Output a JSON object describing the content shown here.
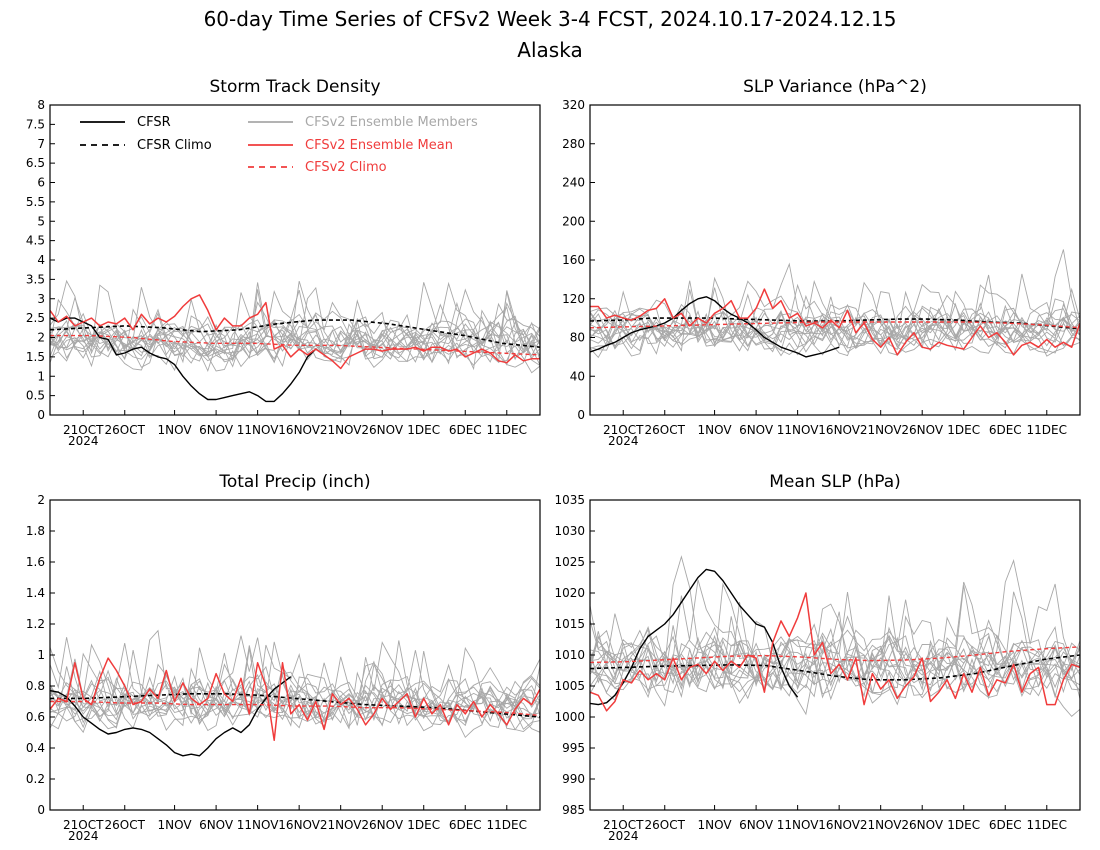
{
  "figure": {
    "title": "60-day Time Series of CFSv2 Week 3-4 FCST, 2024.10.17-2024.12.15",
    "subtitle": "Alaska"
  },
  "colors": {
    "cfsr": "#000000",
    "ensemble_member": "#a8a8a8",
    "ensemble_mean": "#f03c3c",
    "frame": "#000000"
  },
  "legend": {
    "items": [
      {
        "label": "CFSR",
        "color": "#000000",
        "dash": false
      },
      {
        "label": "CFSR Climo",
        "color": "#000000",
        "dash": true
      },
      {
        "label": "CFSv2 Ensemble Members",
        "color": "#a8a8a8",
        "dash": false
      },
      {
        "label": "CFSv2 Ensemble Mean",
        "color": "#f03c3c",
        "dash": false
      },
      {
        "label": "CFSv2 Climo",
        "color": "#f03c3c",
        "dash": true
      }
    ]
  },
  "chart_data": [
    {
      "type": "line",
      "title": "Storm Track Density",
      "x_range": [
        "2024-10-17",
        "2024-12-15"
      ],
      "x_ticks": [
        "21OCT",
        "26OCT",
        "1NOV",
        "6NOV",
        "11NOV",
        "16NOV",
        "21NOV",
        "26NOV",
        "1DEC",
        "6DEC",
        "11DEC"
      ],
      "x_year_label": "2024",
      "ylim": [
        0,
        8
      ],
      "y_ticks": [
        "0",
        "0.5",
        "1",
        "1.5",
        "2",
        "2.5",
        "3",
        "3.5",
        "4",
        "4.5",
        "5",
        "5.5",
        "6",
        "6.5",
        "7",
        "7.5",
        "8"
      ],
      "members_band": {
        "center": 1.9,
        "spread": 0.75,
        "max": 5.5
      },
      "series": [
        {
          "name": "CFSR",
          "role": "cfsr",
          "x_start": "2024-10-17",
          "values": [
            2.5,
            2.4,
            2.5,
            2.5,
            2.4,
            2.3,
            2.0,
            1.95,
            1.55,
            1.6,
            1.7,
            1.75,
            1.6,
            1.5,
            1.45,
            1.3,
            1.0,
            0.75,
            0.55,
            0.4,
            0.4,
            0.45,
            0.5,
            0.55,
            0.6,
            0.5,
            0.35,
            0.35,
            0.55,
            0.8,
            1.1,
            1.5,
            1.7
          ]
        },
        {
          "name": "CFSR Climo",
          "role": "cfsr_climo",
          "x_start": "2024-10-17",
          "values": [
            2.2,
            2.25,
            2.3,
            2.25,
            2.15,
            2.2,
            2.35,
            2.45,
            2.45,
            2.35,
            2.2,
            2.05,
            1.85,
            1.75
          ]
        },
        {
          "name": "CFSv2 Ensemble Mean",
          "role": "ens_mean",
          "x_start": "2024-10-17",
          "values": [
            2.7,
            2.4,
            2.55,
            2.3,
            2.4,
            2.5,
            2.3,
            2.4,
            2.35,
            2.5,
            2.2,
            2.6,
            2.35,
            2.5,
            2.4,
            2.55,
            2.8,
            3.0,
            3.1,
            2.7,
            2.2,
            2.5,
            2.3,
            2.3,
            2.5,
            2.6,
            2.9,
            1.7,
            1.8,
            1.5,
            1.7,
            1.55,
            1.7,
            1.55,
            1.4,
            1.2,
            1.5,
            1.6,
            1.7,
            1.7,
            1.65,
            1.7,
            1.7,
            1.7,
            1.75,
            1.65,
            1.75,
            1.75,
            1.65,
            1.7,
            1.5,
            1.6,
            1.7,
            1.6,
            1.4,
            1.35,
            1.55,
            1.4,
            1.45,
            1.45
          ]
        },
        {
          "name": "CFSv2 Climo",
          "role": "ens_climo",
          "x_start": "2024-10-17",
          "values": [
            2.05,
            2.05,
            2.0,
            1.9,
            1.85,
            1.85,
            1.8,
            1.8,
            1.75,
            1.7,
            1.65,
            1.6,
            1.55
          ]
        }
      ]
    },
    {
      "type": "line",
      "title": "SLP Variance (hPa^2)",
      "x_range": [
        "2024-10-17",
        "2024-12-15"
      ],
      "x_ticks": [
        "21OCT",
        "26OCT",
        "1NOV",
        "6NOV",
        "11NOV",
        "16NOV",
        "21NOV",
        "26NOV",
        "1DEC",
        "6DEC",
        "11DEC"
      ],
      "x_year_label": "2024",
      "ylim": [
        0,
        320
      ],
      "y_ticks": [
        "0",
        "40",
        "80",
        "120",
        "160",
        "200",
        "240",
        "280",
        "320"
      ],
      "members_band": {
        "center": 88,
        "spread": 28,
        "max": 320
      },
      "series": [
        {
          "name": "CFSR",
          "role": "cfsr",
          "x_start": "2024-10-17",
          "values": [
            65,
            68,
            72,
            75,
            80,
            85,
            88,
            90,
            92,
            95,
            100,
            108,
            115,
            120,
            122,
            118,
            110,
            104,
            100,
            95,
            88,
            80,
            75,
            70,
            67,
            64,
            60,
            62,
            64,
            67,
            70
          ]
        },
        {
          "name": "CFSR Climo",
          "role": "cfsr_climo",
          "x_start": "2024-10-17",
          "values": [
            97,
            98,
            100,
            100,
            100,
            99,
            98,
            97,
            97,
            98,
            99,
            99,
            98,
            96,
            95,
            92,
            89
          ]
        },
        {
          "name": "CFSv2 Ensemble Mean",
          "role": "ens_mean",
          "x_start": "2024-10-17",
          "values": [
            112,
            112,
            100,
            103,
            100,
            98,
            102,
            108,
            110,
            120,
            100,
            105,
            92,
            100,
            95,
            105,
            110,
            118,
            100,
            100,
            110,
            130,
            110,
            118,
            100,
            105,
            92,
            95,
            90,
            98,
            90,
            108,
            85,
            95,
            78,
            70,
            80,
            62,
            75,
            85,
            70,
            68,
            75,
            72,
            70,
            68,
            80,
            92,
            80,
            85,
            75,
            62,
            72,
            75,
            70,
            78,
            70,
            75,
            70,
            95
          ]
        },
        {
          "name": "CFSv2 Climo",
          "role": "ens_climo",
          "x_start": "2024-10-17",
          "values": [
            90,
            91,
            92,
            93,
            94,
            95,
            96,
            96,
            96,
            96,
            96,
            95,
            93,
            90
          ]
        }
      ]
    },
    {
      "type": "line",
      "title": "Total Precip (inch)",
      "x_range": [
        "2024-10-17",
        "2024-12-15"
      ],
      "x_ticks": [
        "21OCT",
        "26OCT",
        "1NOV",
        "6NOV",
        "11NOV",
        "16NOV",
        "21NOV",
        "26NOV",
        "1DEC",
        "6DEC",
        "11DEC"
      ],
      "x_year_label": "2024",
      "ylim": [
        0,
        2
      ],
      "y_ticks": [
        "0",
        "0.2",
        "0.4",
        "0.6",
        "0.8",
        "1",
        "1.2",
        "1.4",
        "1.6",
        "1.8",
        "2"
      ],
      "members_band": {
        "center": 0.68,
        "spread": 0.2,
        "max": 1.3
      },
      "series": [
        {
          "name": "CFSR",
          "role": "cfsr",
          "x_start": "2024-10-17",
          "values": [
            0.77,
            0.76,
            0.73,
            0.67,
            0.6,
            0.56,
            0.52,
            0.49,
            0.5,
            0.52,
            0.53,
            0.52,
            0.5,
            0.46,
            0.42,
            0.37,
            0.35,
            0.36,
            0.35,
            0.4,
            0.46,
            0.5,
            0.53,
            0.5,
            0.55,
            0.65,
            0.72,
            0.78,
            0.82,
            0.86
          ]
        },
        {
          "name": "CFSR Climo",
          "role": "cfsr_climo",
          "x_start": "2024-10-17",
          "values": [
            0.72,
            0.72,
            0.73,
            0.74,
            0.75,
            0.75,
            0.74,
            0.72,
            0.7,
            0.68,
            0.67,
            0.66,
            0.64,
            0.62,
            0.6
          ]
        },
        {
          "name": "CFSv2 Ensemble Mean",
          "role": "ens_mean",
          "x_start": "2024-10-17",
          "values": [
            0.65,
            0.72,
            0.7,
            0.95,
            0.72,
            0.68,
            0.85,
            0.98,
            0.9,
            0.8,
            0.68,
            0.7,
            0.78,
            0.72,
            0.9,
            0.7,
            0.82,
            0.72,
            0.68,
            0.72,
            0.88,
            0.75,
            0.7,
            0.85,
            0.62,
            0.95,
            0.8,
            0.45,
            0.95,
            0.62,
            0.68,
            0.58,
            0.7,
            0.52,
            0.75,
            0.68,
            0.72,
            0.65,
            0.55,
            0.62,
            0.72,
            0.65,
            0.7,
            0.75,
            0.6,
            0.72,
            0.62,
            0.68,
            0.55,
            0.68,
            0.62,
            0.7,
            0.6,
            0.68,
            0.62,
            0.55,
            0.65,
            0.72,
            0.68,
            0.78
          ]
        },
        {
          "name": "CFSv2 Climo",
          "role": "ens_climo",
          "x_start": "2024-10-17",
          "values": [
            0.7,
            0.7,
            0.69,
            0.69,
            0.68,
            0.68,
            0.68,
            0.67,
            0.67,
            0.66,
            0.66,
            0.65,
            0.64,
            0.63,
            0.61
          ]
        }
      ]
    },
    {
      "type": "line",
      "title": "Mean SLP (hPa)",
      "x_range": [
        "2024-10-17",
        "2024-12-15"
      ],
      "x_ticks": [
        "21OCT",
        "26OCT",
        "1NOV",
        "6NOV",
        "11NOV",
        "16NOV",
        "21NOV",
        "26NOV",
        "1DEC",
        "6DEC",
        "11DEC"
      ],
      "x_year_label": "2024",
      "ylim": [
        985,
        1035
      ],
      "y_ticks": [
        "985",
        "990",
        "995",
        "1000",
        "1005",
        "1010",
        "1015",
        "1020",
        "1025",
        "1030",
        "1035"
      ],
      "members_band": {
        "center": 1008,
        "spread": 6.5,
        "max": 1032
      },
      "series": [
        {
          "name": "CFSR",
          "role": "cfsr",
          "x_start": "2024-10-17",
          "values": [
            1002.2,
            1002.0,
            1002.3,
            1003.5,
            1005.5,
            1008.0,
            1011.0,
            1013.0,
            1014.0,
            1015.0,
            1016.5,
            1018.5,
            1020.5,
            1022.5,
            1023.8,
            1023.5,
            1022.0,
            1020.0,
            1018.0,
            1016.5,
            1015.0,
            1014.5,
            1012.0,
            1008.0,
            1005.0,
            1003.2
          ]
        },
        {
          "name": "CFSR Climo",
          "role": "cfsr_climo",
          "x_start": "2024-10-17",
          "values": [
            1007.8,
            1008.0,
            1008.2,
            1008.3,
            1008.4,
            1008.3,
            1007.5,
            1006.6,
            1006.0,
            1006.0,
            1006.3,
            1007.0,
            1008.2,
            1009.3,
            1010.0
          ]
        },
        {
          "name": "CFSv2 Ensemble Mean",
          "role": "ens_mean",
          "x_start": "2024-10-17",
          "values": [
            1004.0,
            1003.5,
            1001.0,
            1002.5,
            1006.0,
            1005.5,
            1007.5,
            1006.0,
            1007.0,
            1006.0,
            1009.5,
            1006.0,
            1008.0,
            1008.5,
            1007.0,
            1009.0,
            1007.5,
            1009.0,
            1008.0,
            1010.0,
            1009.5,
            1004.0,
            1012.0,
            1015.5,
            1013.0,
            1016.0,
            1020.0,
            1010.0,
            1012.0,
            1007.0,
            1008.5,
            1006.0,
            1009.5,
            1002.0,
            1007.0,
            1004.5,
            1006.0,
            1003.0,
            1005.0,
            1006.5,
            1009.5,
            1002.5,
            1004.0,
            1006.0,
            1003.0,
            1007.0,
            1004.0,
            1008.0,
            1003.5,
            1006.0,
            1005.5,
            1008.5,
            1004.0,
            1007.0,
            1008.0,
            1002.0,
            1002.0,
            1006.0,
            1008.5,
            1008.0
          ]
        },
        {
          "name": "CFSv2 Climo",
          "role": "ens_climo",
          "x_start": "2024-10-17",
          "values": [
            1008.8,
            1008.9,
            1009.2,
            1009.5,
            1009.8,
            1009.9,
            1009.7,
            1009.3,
            1009.1,
            1009.2,
            1009.5,
            1010.0,
            1010.6,
            1011.0,
            1011.3
          ]
        }
      ]
    }
  ]
}
